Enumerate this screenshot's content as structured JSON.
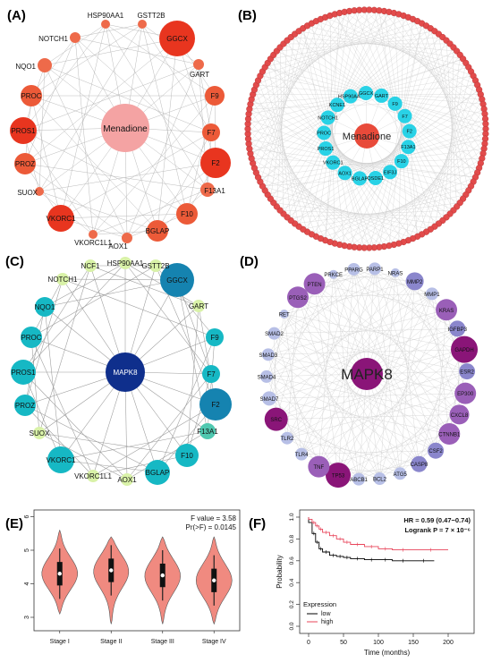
{
  "panels": {
    "A": {
      "label": "(A)",
      "center": "Menadione"
    },
    "B": {
      "label": "(B)",
      "center": "Menadione",
      "inner_nodes": [
        "GART",
        "F9",
        "F7",
        "F2",
        "F13A1",
        "F10",
        "EIF3J",
        "QSDE1",
        "BGLAP",
        "AOX1",
        "VKORC1",
        "PROS1",
        "PROC",
        "NOTCH1",
        "KCNE1",
        "HSP90AA1",
        "GGCX"
      ]
    },
    "C": {
      "label": "(C)",
      "center": "MAPK8"
    },
    "D": {
      "label": "(D)",
      "center": "MAPK8"
    },
    "E": {
      "label": "(E)",
      "stat1": "F value = 3.58",
      "stat2": "Pr(>F) = 0.0145"
    },
    "F": {
      "label": "(F)",
      "hr": "HR = 0.59 (0.47−0.74)",
      "logrank": "Logrank P = 7 × 10⁻⁶"
    }
  },
  "network_genes": [
    "NQO1",
    "PROC",
    "PROS1",
    "PROZ",
    "SUOX",
    "VKORC1",
    "VKORC1L1",
    "AOX1",
    "BGLAP",
    "F10",
    "F13A1",
    "F2",
    "F7",
    "F9",
    "GART",
    "GGCX",
    "GSTT2B",
    "HSP90AA1",
    "NOTCH1"
  ],
  "network_c_extra": {
    "ncf1": "NCF1"
  },
  "network_d_genes": [
    "PARP1",
    "NRAS",
    "MMP2",
    "MMP1",
    "KRAS",
    "IGFBP3",
    "GAPDH",
    "ESR2",
    "EP300",
    "CXCL8",
    "CTNNB1",
    "CSF2",
    "CASP8",
    "ATG5",
    "BCL2",
    "ABCB1",
    "TP53",
    "TNF",
    "TLR4",
    "TLR2",
    "SRC",
    "SMAD7",
    "SMAD4",
    "SMAD3",
    "SMAD2",
    "RET",
    "PTGS2",
    "PTEN",
    "PRKCE",
    "PPARG"
  ],
  "colors": {
    "A_red": "#e8351f",
    "A_mid": "#ee6a4a",
    "A_center": "#f4a3a3",
    "B_red": "#e24b4b",
    "B_cyan": "#29d2e6",
    "C_dark": "#0f2f8c",
    "C_teal": "#16b8c4",
    "C_light": "#d9f2a8",
    "D_dark": "#8a1578",
    "D_purple": "#9a5fb8",
    "D_light": "#b7bfe6",
    "violin_fill": "#f08a80"
  },
  "chart_data": [
    {
      "type": "violin",
      "title": "",
      "categories": [
        "Stage I",
        "Stage II",
        "Stage III",
        "Stage IV"
      ],
      "medians": [
        4.3,
        4.4,
        4.25,
        4.1
      ],
      "ranges": [
        [
          3.1,
          5.6
        ],
        [
          2.8,
          5.4
        ],
        [
          2.8,
          5.4
        ],
        [
          2.8,
          5.4
        ]
      ],
      "ylim": [
        2.6,
        6.2
      ],
      "yticks": [
        "3",
        "4",
        "5",
        "6"
      ],
      "xlabel": "",
      "ylabel": ""
    },
    {
      "type": "line",
      "title": "",
      "xlabel": "Time (months)",
      "ylabel": "Probability",
      "xlim": [
        0,
        200
      ],
      "ylim": [
        0,
        1
      ],
      "xticks": [
        "0",
        "50",
        "100",
        "150",
        "200"
      ],
      "yticks": [
        "0.0",
        "0.2",
        "0.4",
        "0.6",
        "0.8",
        "1.0"
      ],
      "legend_title": "Expression",
      "series": [
        {
          "name": "low",
          "color": "#000000",
          "x": [
            0,
            5,
            10,
            15,
            20,
            30,
            40,
            50,
            60,
            80,
            100,
            120,
            150,
            180
          ],
          "y": [
            0.95,
            0.85,
            0.77,
            0.71,
            0.68,
            0.65,
            0.64,
            0.63,
            0.62,
            0.61,
            0.61,
            0.6,
            0.6,
            0.6
          ]
        },
        {
          "name": "high",
          "color": "#e8445a",
          "x": [
            0,
            5,
            10,
            15,
            20,
            30,
            40,
            50,
            60,
            80,
            100,
            120,
            150,
            200
          ],
          "y": [
            0.98,
            0.95,
            0.92,
            0.89,
            0.86,
            0.83,
            0.8,
            0.77,
            0.75,
            0.73,
            0.71,
            0.7,
            0.7,
            0.7
          ]
        }
      ]
    }
  ]
}
